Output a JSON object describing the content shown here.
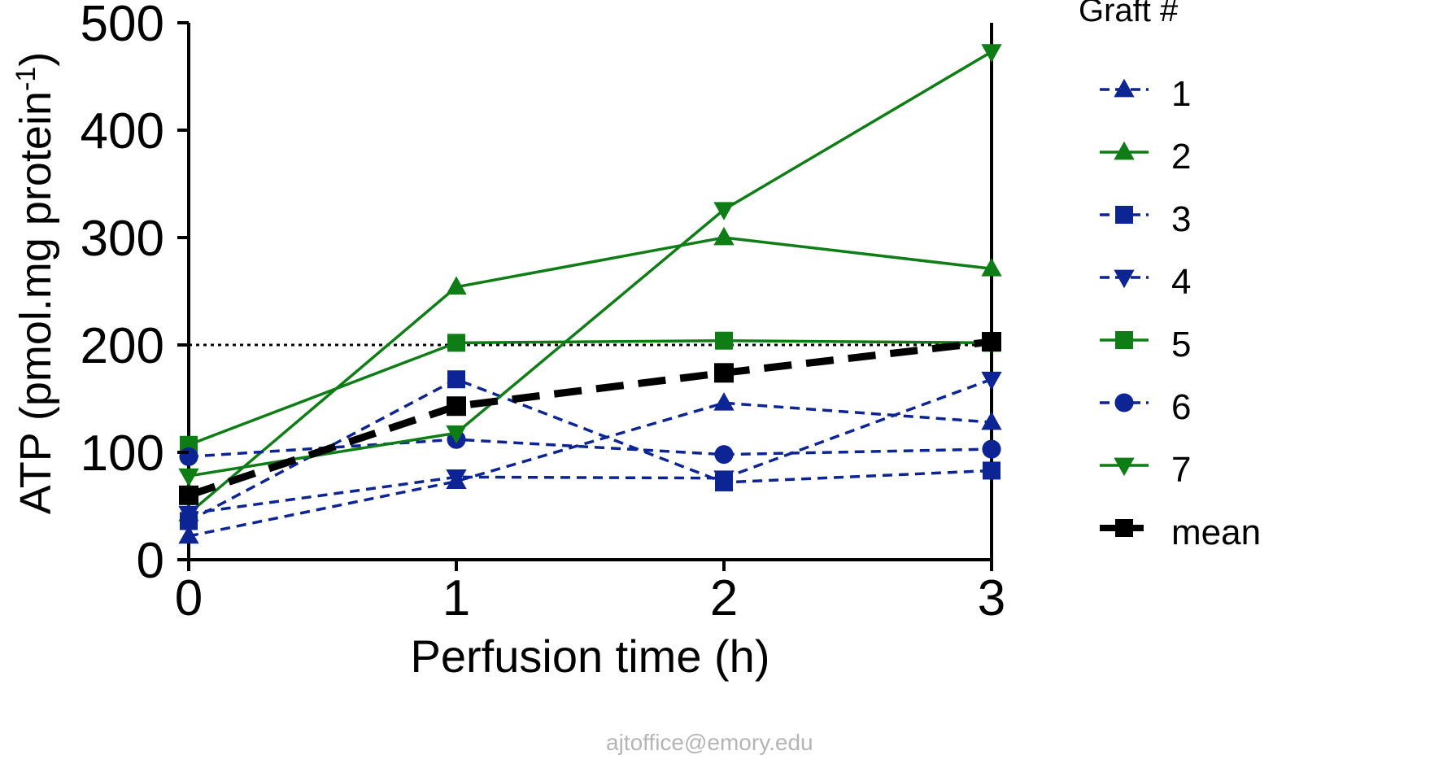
{
  "chart_data": {
    "type": "line",
    "title": "",
    "xlabel": "Perfusion time (h)",
    "ylabel_main": "ATP (pmol.mg protein",
    "ylabel_sup": "-1",
    "ylabel_close": ")",
    "x": [
      0,
      1,
      2,
      3
    ],
    "xlim": [
      0,
      3
    ],
    "ylim": [
      0,
      500
    ],
    "xticks": [
      "0",
      "1",
      "2",
      "3"
    ],
    "yticks": [
      "0",
      "100",
      "200",
      "300",
      "400",
      "500"
    ],
    "reference_line": 200,
    "grid": false,
    "legend": {
      "title": "Graft #",
      "placement": "right"
    },
    "series": [
      {
        "name": "1",
        "values": [
          22,
          73,
          146,
          128
        ],
        "color": "#0d2594",
        "dash": true,
        "marker": "triangle-up"
      },
      {
        "name": "2",
        "values": [
          43,
          254,
          300,
          271
        ],
        "color": "#0f7d16",
        "dash": false,
        "marker": "triangle-up"
      },
      {
        "name": "3",
        "values": [
          36,
          168,
          72,
          83
        ],
        "color": "#0d2594",
        "dash": true,
        "marker": "square"
      },
      {
        "name": "4",
        "values": [
          43,
          77,
          76,
          168
        ],
        "color": "#0d2594",
        "dash": true,
        "marker": "triangle-down"
      },
      {
        "name": "5",
        "values": [
          107,
          202,
          204,
          202
        ],
        "color": "#0f7d16",
        "dash": false,
        "marker": "square"
      },
      {
        "name": "6",
        "values": [
          96,
          112,
          98,
          103
        ],
        "color": "#0d2594",
        "dash": true,
        "marker": "circle"
      },
      {
        "name": "7",
        "values": [
          78,
          118,
          326,
          473
        ],
        "color": "#0f7d16",
        "dash": false,
        "marker": "triangle-down"
      },
      {
        "name": "mean",
        "values": [
          60,
          143,
          174,
          203
        ],
        "color": "#000000",
        "dash": true,
        "bold": true,
        "marker": "square"
      }
    ]
  },
  "watermark": "ajtoffice@emory.edu"
}
